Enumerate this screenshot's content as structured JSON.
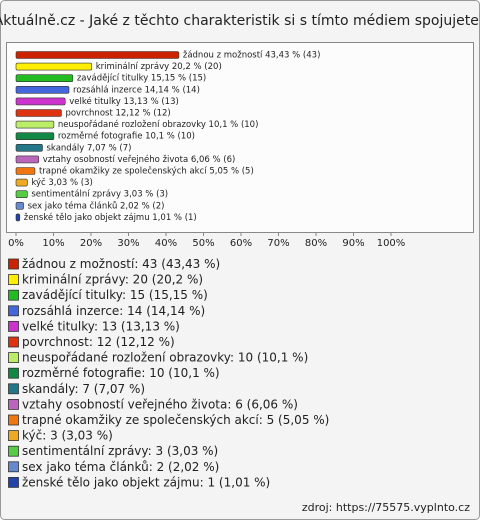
{
  "chart_data": {
    "type": "bar",
    "orientation": "horizontal",
    "title": "Aktuálně.cz - Jaké z těchto charakteristik si s tímto médiem spojujete?",
    "categories": [
      "žádnou z možností",
      "kriminální zprávy",
      "zavádějící titulky",
      "rozsáhlá inzerce",
      "velké titulky",
      "povrchnost",
      "neuspořádané rozložení obrazovky",
      "rozměrné fotografie",
      "skandály",
      "vztahy osobností veřejného života",
      "trapné okamžiky ze společenských akcí",
      "kýč",
      "sentimentální zprávy",
      "sex jako téma článků",
      "ženské tělo jako objekt zájmu"
    ],
    "values": [
      43.43,
      20.2,
      15.15,
      14.14,
      13.13,
      12.12,
      10.1,
      10.1,
      7.07,
      6.06,
      5.05,
      3.03,
      3.03,
      2.02,
      1.01
    ],
    "bar_labels": [
      "žádnou z možností 43,43 % (43)",
      "kriminální zprávy 20,2 % (20)",
      "zavádějící titulky 15,15 % (15)",
      "rozsáhlá inzerce 14,14 % (14)",
      "velké titulky 13,13 % (13)",
      "povrchnost 12,12 % (12)",
      "neuspořádané rozložení obrazovky 10,1 % (10)",
      "rozměrné fotografie 10,1 % (10)",
      "skandály 7,07 % (7)",
      "vztahy osobností veřejného života 6,06 % (6)",
      "trapné okamžiky ze společenských akcí 5,05 % (5)",
      "kýč 3,03 % (3)",
      "sentimentální zprávy 3,03 % (3)",
      "sex jako téma článků 2,02 % (2)",
      "ženské tělo jako objekt zájmu 1,01 % (1)"
    ],
    "legend": [
      "žádnou z možností: 43 (43,43 %)",
      "kriminální zprávy: 20 (20,2 %)",
      "zavádějící titulky: 15 (15,15 %)",
      "rozsáhlá inzerce: 14 (14,14 %)",
      "velké titulky: 13 (13,13 %)",
      "povrchnost: 12 (12,12 %)",
      "neuspořádané rozložení obrazovky: 10 (10,1 %)",
      "rozměrné fotografie: 10 (10,1 %)",
      "skandály: 7 (7,07 %)",
      "vztahy osobností veřejného života: 6 (6,06 %)",
      "trapné okamžiky ze společenských akcí: 5 (5,05 %)",
      "kýč: 3 (3,03 %)",
      "sentimentální zprávy: 3 (3,03 %)",
      "sex jako téma článků: 2 (2,02 %)",
      "ženské tělo jako objekt zájmu: 1 (1,01 %)"
    ],
    "colors": [
      "#cc2200",
      "#ffee00",
      "#22bb22",
      "#4466dd",
      "#cc33cc",
      "#dd3311",
      "#bbee66",
      "#118844",
      "#227788",
      "#bb66bb",
      "#ee7711",
      "#eeaa22",
      "#55cc44",
      "#6688cc",
      "#2244aa"
    ],
    "xlim": [
      0,
      100
    ],
    "xticks": [
      {
        "value": 0,
        "label": "0%"
      },
      {
        "value": 10,
        "label": "10%"
      },
      {
        "value": 20,
        "label": "20%"
      },
      {
        "value": 30,
        "label": "30%"
      },
      {
        "value": 40,
        "label": "40%"
      },
      {
        "value": 50,
        "label": "50%"
      },
      {
        "value": 60,
        "label": "60%"
      },
      {
        "value": 70,
        "label": "70%"
      },
      {
        "value": 80,
        "label": "80%"
      },
      {
        "value": 90,
        "label": "90%"
      },
      {
        "value": 100,
        "label": "100%"
      }
    ],
    "source": "zdroj: https://75575.vyplnto.cz"
  }
}
